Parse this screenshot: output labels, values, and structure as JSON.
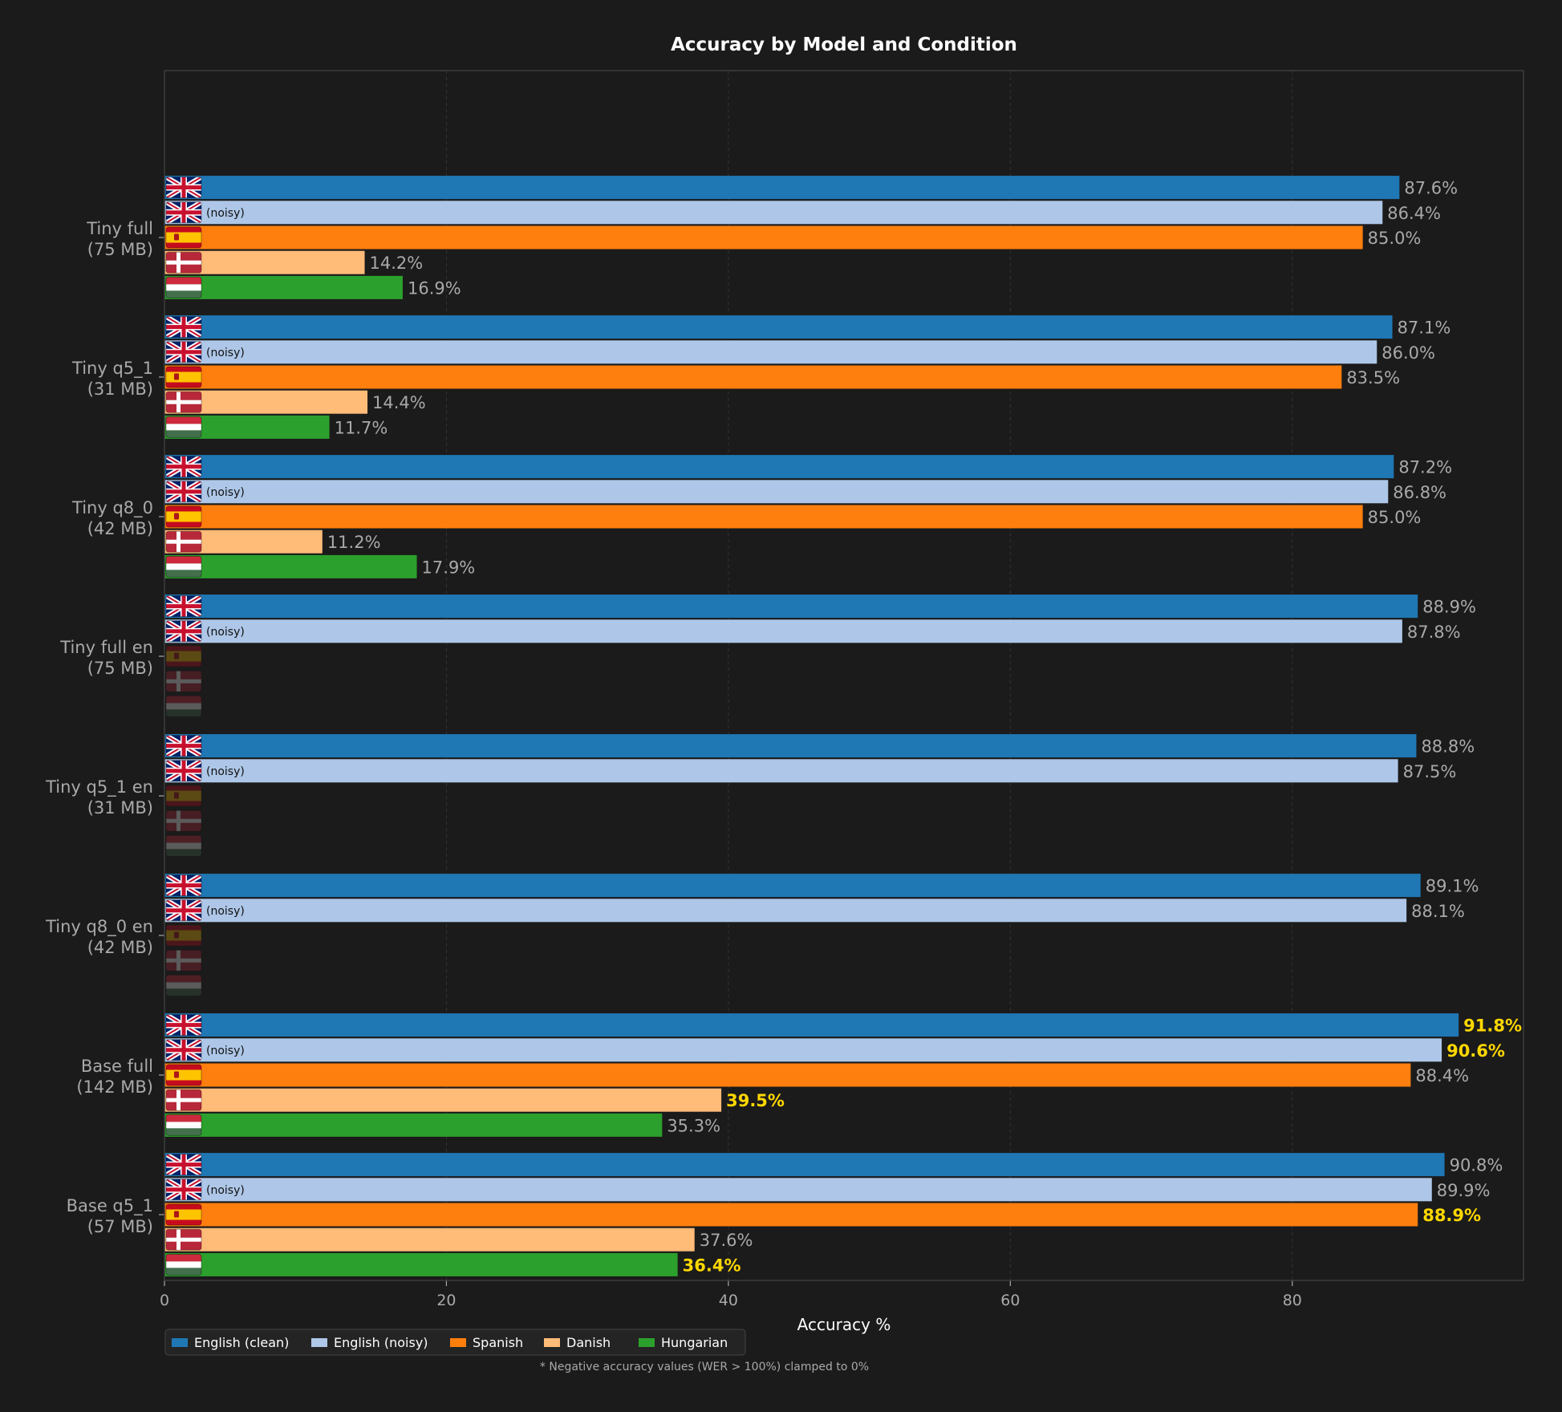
{
  "chart_data": {
    "type": "bar",
    "orientation": "horizontal",
    "title": "Accuracy by Model and Condition",
    "xlabel": "Accuracy %",
    "ylabel": "",
    "xlim": [
      0,
      96.4
    ],
    "xticks": [
      "0",
      "20",
      "40",
      "60",
      "80"
    ],
    "grid": true,
    "legend_position": "bottom-left",
    "footnote": "* Negative accuracy values (WER > 100%) clamped to 0%",
    "noisy_tag": "(noisy)",
    "categories": [
      {
        "label": "Tiny full",
        "size": "(75 MB)"
      },
      {
        "label": "Tiny q5_1",
        "size": "(31 MB)"
      },
      {
        "label": "Tiny q8_0",
        "size": "(42 MB)"
      },
      {
        "label": "Tiny full en",
        "size": "(75 MB)"
      },
      {
        "label": "Tiny q5_1 en",
        "size": "(31 MB)"
      },
      {
        "label": "Tiny q8_0 en",
        "size": "(42 MB)"
      },
      {
        "label": "Base full",
        "size": "(142 MB)"
      },
      {
        "label": "Base q5_1",
        "size": "(57 MB)"
      }
    ],
    "series": [
      {
        "name": "English (clean)",
        "flag": "uk-flag-icon",
        "color": "#1f77b4",
        "values": [
          87.6,
          87.1,
          87.2,
          88.9,
          88.8,
          89.1,
          91.8,
          90.8
        ],
        "labels": [
          "87.6%",
          "87.1%",
          "87.2%",
          "88.9%",
          "88.8%",
          "89.1%",
          "91.8%",
          "90.8%"
        ],
        "highlight": [
          false,
          false,
          false,
          false,
          false,
          false,
          true,
          false
        ]
      },
      {
        "name": "English (noisy)",
        "flag": "uk-flag-icon",
        "color": "#aec7e8",
        "values": [
          86.4,
          86.0,
          86.8,
          87.8,
          87.5,
          88.1,
          90.6,
          89.9
        ],
        "labels": [
          "86.4%",
          "86.0%",
          "86.8%",
          "87.8%",
          "87.5%",
          "88.1%",
          "90.6%",
          "89.9%"
        ],
        "highlight": [
          false,
          false,
          false,
          false,
          false,
          false,
          true,
          false
        ]
      },
      {
        "name": "Spanish",
        "flag": "spain-flag-icon",
        "color": "#ff7f0e",
        "values": [
          85.0,
          83.5,
          85.0,
          null,
          null,
          null,
          88.4,
          88.9
        ],
        "labels": [
          "85.0%",
          "83.5%",
          "85.0%",
          null,
          null,
          null,
          "88.4%",
          "88.9%"
        ],
        "highlight": [
          false,
          false,
          false,
          false,
          false,
          false,
          false,
          true
        ]
      },
      {
        "name": "Danish",
        "flag": "denmark-flag-icon",
        "color": "#ffbb78",
        "values": [
          14.2,
          14.4,
          11.2,
          null,
          null,
          null,
          39.5,
          37.6
        ],
        "labels": [
          "14.2%",
          "14.4%",
          "11.2%",
          null,
          null,
          null,
          "39.5%",
          "37.6%"
        ],
        "highlight": [
          false,
          false,
          false,
          false,
          false,
          false,
          true,
          false
        ]
      },
      {
        "name": "Hungarian",
        "flag": "hungary-flag-icon",
        "color": "#2ca02c",
        "values": [
          16.9,
          11.7,
          17.9,
          null,
          null,
          null,
          35.3,
          36.4
        ],
        "labels": [
          "16.9%",
          "11.7%",
          "17.9%",
          null,
          null,
          null,
          "35.3%",
          "36.4%"
        ],
        "highlight": [
          false,
          false,
          false,
          false,
          false,
          false,
          false,
          true
        ]
      }
    ],
    "colors": {
      "background": "#1b1b1b",
      "text": "#ffffff",
      "label_text": "#a9a9a9",
      "highlight_text": "#ffd700",
      "grid": "#3a3a3a",
      "frame": "#3c3c3c"
    }
  }
}
